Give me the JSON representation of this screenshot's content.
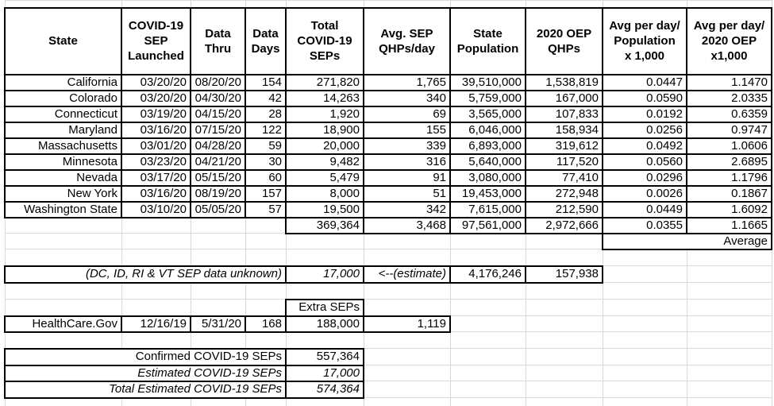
{
  "colors": {
    "border": "#000000",
    "gridline": "#d9d9d9",
    "background": "#ffffff",
    "text": "#000000"
  },
  "sheet": {
    "header": {
      "state": "State",
      "launched": "COVID-19\nSEP\nLaunched",
      "thru": "Data\nThru",
      "days": "Data\nDays",
      "total": "Total\nCOVID-19\nSEPs",
      "avg": "Avg. SEP\nQHPs/day",
      "population": "State\nPopulation",
      "oep": "2020 OEP\nQHPs",
      "avg_pop": "Avg per day/\nPopulation\nx 1,000",
      "avg_oep": "Avg per day/\n2020 OEP\nx1,000"
    },
    "rows": [
      {
        "state": "California",
        "launched": "03/20/20",
        "thru": "08/20/20",
        "days": "154",
        "total": "271,820",
        "avg": "1,765",
        "population": "39,510,000",
        "oep": "1,538,819",
        "avg_pop": "0.0447",
        "avg_oep": "1.1470"
      },
      {
        "state": "Colorado",
        "launched": "03/20/20",
        "thru": "04/30/20",
        "days": "42",
        "total": "14,263",
        "avg": "340",
        "population": "5,759,000",
        "oep": "167,000",
        "avg_pop": "0.0590",
        "avg_oep": "2.0335"
      },
      {
        "state": "Connecticut",
        "launched": "03/19/20",
        "thru": "04/15/20",
        "days": "28",
        "total": "1,920",
        "avg": "69",
        "population": "3,565,000",
        "oep": "107,833",
        "avg_pop": "0.0192",
        "avg_oep": "0.6359"
      },
      {
        "state": "Maryland",
        "launched": "03/16/20",
        "thru": "07/15/20",
        "days": "122",
        "total": "18,900",
        "avg": "155",
        "population": "6,046,000",
        "oep": "158,934",
        "avg_pop": "0.0256",
        "avg_oep": "0.9747"
      },
      {
        "state": "Massachusetts",
        "launched": "03/01/20",
        "thru": "04/28/20",
        "days": "59",
        "total": "20,000",
        "avg": "339",
        "population": "6,893,000",
        "oep": "319,612",
        "avg_pop": "0.0492",
        "avg_oep": "1.0606"
      },
      {
        "state": "Minnesota",
        "launched": "03/23/20",
        "thru": "04/21/20",
        "days": "30",
        "total": "9,482",
        "avg": "316",
        "population": "5,640,000",
        "oep": "117,520",
        "avg_pop": "0.0560",
        "avg_oep": "2.6895"
      },
      {
        "state": "Nevada",
        "launched": "03/17/20",
        "thru": "05/15/20",
        "days": "60",
        "total": "5,479",
        "avg": "91",
        "population": "3,080,000",
        "oep": "77,410",
        "avg_pop": "0.0296",
        "avg_oep": "1.1796"
      },
      {
        "state": "New York",
        "launched": "03/16/20",
        "thru": "08/19/20",
        "days": "157",
        "total": "8,000",
        "avg": "51",
        "population": "19,453,000",
        "oep": "272,948",
        "avg_pop": "0.0026",
        "avg_oep": "0.1867"
      },
      {
        "state": "Washington State",
        "launched": "03/10/20",
        "thru": "05/05/20",
        "days": "57",
        "total": "19,500",
        "avg": "342",
        "population": "7,615,000",
        "oep": "212,590",
        "avg_pop": "0.0449",
        "avg_oep": "1.6092"
      }
    ],
    "totals": {
      "total": "369,364",
      "avg": "3,468",
      "population": "97,561,000",
      "oep": "2,972,666",
      "avg_pop": "0.0355",
      "avg_oep": "1.1665"
    },
    "average_label": "Average",
    "unknown": {
      "label": "(DC, ID, RI & VT SEP data unknown)",
      "value": "17,000",
      "note": "<--(estimate)",
      "population": "4,176,246",
      "oep": "157,938"
    },
    "extra_seps_label": "Extra SEPs",
    "healthcare": {
      "name": "HealthCare.Gov",
      "launched": "12/16/19",
      "thru": "5/31/20",
      "days": "168",
      "total": "188,000",
      "avg": "1,119"
    },
    "summary": {
      "confirmed_label": "Confirmed COVID-19 SEPs",
      "confirmed_value": "557,364",
      "estimated_label": "Estimated COVID-19 SEPs",
      "estimated_value": "17,000",
      "total_label": "Total Estimated COVID-19 SEPs",
      "total_value": "574,364"
    }
  }
}
